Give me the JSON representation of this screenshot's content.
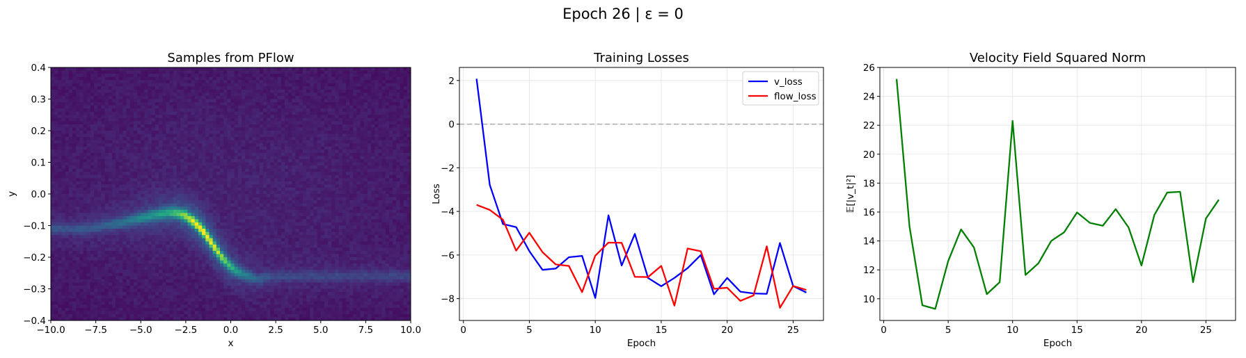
{
  "suptitle": "Epoch 26 | ε = 0",
  "chart_data": [
    {
      "type": "heatmap",
      "title": "Samples from PFlow",
      "xlabel": "x",
      "ylabel": "y",
      "xlim": [
        -10.0,
        10.0
      ],
      "ylim": [
        -0.4,
        0.4
      ],
      "xticks": [
        "−10.0",
        "−7.5",
        "−5.0",
        "−2.5",
        "0.0",
        "2.5",
        "5.0",
        "7.5",
        "10.0"
      ],
      "xtick_values": [
        -10.0,
        -7.5,
        -5.0,
        -2.5,
        0.0,
        2.5,
        5.0,
        7.5,
        10.0
      ],
      "yticks": [
        "−0.4",
        "−0.3",
        "−0.2",
        "−0.1",
        "0.0",
        "0.1",
        "0.2",
        "0.3",
        "0.4"
      ],
      "ytick_values": [
        -0.4,
        -0.3,
        -0.2,
        -0.1,
        0.0,
        0.1,
        0.2,
        0.3,
        0.4
      ],
      "colormap": "viridis",
      "grid": false,
      "density_ridge": {
        "x": [
          -8.0,
          -6.0,
          -4.5,
          -3.5,
          -3.0,
          -2.5,
          -2.0,
          -1.5,
          -1.0,
          -0.5,
          0.0,
          0.5,
          1.0,
          1.5,
          2.5
        ],
        "y": [
          -0.11,
          -0.09,
          -0.07,
          -0.06,
          -0.06,
          -0.07,
          -0.09,
          -0.12,
          -0.16,
          -0.2,
          -0.23,
          -0.25,
          -0.26,
          -0.27,
          -0.26
        ],
        "intensity": [
          0.2,
          0.3,
          0.45,
          0.55,
          0.65,
          0.8,
          0.95,
          1.0,
          0.95,
          0.8,
          0.6,
          0.45,
          0.35,
          0.25,
          0.15
        ]
      }
    },
    {
      "type": "line",
      "title": "Training Losses",
      "xlabel": "Epoch",
      "ylabel": "Loss",
      "xlim": [
        -0.3,
        27.3
      ],
      "ylim": [
        -9.0,
        2.6
      ],
      "xticks": [
        "0",
        "5",
        "10",
        "15",
        "20",
        "25"
      ],
      "xtick_values": [
        0,
        5,
        10,
        15,
        20,
        25
      ],
      "yticks": [
        "−8",
        "−6",
        "−4",
        "−2",
        "0",
        "2"
      ],
      "ytick_values": [
        -8,
        -6,
        -4,
        -2,
        0,
        2
      ],
      "grid": true,
      "hline": 0,
      "legend": "top-right",
      "x": [
        1,
        2,
        3,
        4,
        5,
        6,
        7,
        8,
        9,
        10,
        11,
        12,
        13,
        14,
        15,
        16,
        17,
        18,
        19,
        20,
        21,
        22,
        23,
        24,
        25,
        26
      ],
      "series": [
        {
          "name": "v_loss",
          "color": "#0000ff",
          "values": [
            2.08,
            -2.78,
            -4.58,
            -4.72,
            -5.82,
            -6.68,
            -6.62,
            -6.1,
            -6.04,
            -7.97,
            -4.18,
            -6.48,
            -5.03,
            -7.05,
            -7.43,
            -7.05,
            -6.6,
            -6.0,
            -7.8,
            -7.05,
            -7.68,
            -7.76,
            -7.78,
            -5.45,
            -7.42,
            -7.72
          ]
        },
        {
          "name": "flow_loss",
          "color": "#ff0000",
          "values": [
            -3.7,
            -3.93,
            -4.38,
            -5.8,
            -4.98,
            -5.87,
            -6.43,
            -6.5,
            -7.7,
            -6.03,
            -5.43,
            -5.44,
            -7.0,
            -7.01,
            -6.5,
            -8.32,
            -5.7,
            -5.83,
            -7.55,
            -7.5,
            -8.1,
            -7.85,
            -5.6,
            -8.42,
            -7.42,
            -7.6
          ]
        }
      ]
    },
    {
      "type": "line",
      "title": "Velocity Field Squared Norm",
      "xlabel": "Epoch",
      "ylabel": "𝔼[|v_t|²]",
      "xlim": [
        -0.3,
        27.3
      ],
      "ylim": [
        8.5,
        26.0
      ],
      "xticks": [
        "0",
        "5",
        "10",
        "15",
        "20",
        "25"
      ],
      "xtick_values": [
        0,
        5,
        10,
        15,
        20,
        25
      ],
      "yticks": [
        "10",
        "12",
        "14",
        "16",
        "18",
        "20",
        "22",
        "24",
        "26"
      ],
      "ytick_values": [
        10,
        12,
        14,
        16,
        18,
        20,
        22,
        24,
        26
      ],
      "grid": true,
      "x": [
        1,
        2,
        3,
        4,
        5,
        6,
        7,
        8,
        9,
        10,
        11,
        12,
        13,
        14,
        15,
        16,
        17,
        18,
        19,
        20,
        21,
        22,
        23,
        24,
        25,
        26
      ],
      "series": [
        {
          "color": "#008000",
          "values": [
            25.2,
            15.0,
            9.55,
            9.3,
            12.6,
            14.8,
            13.55,
            10.32,
            11.15,
            22.3,
            11.65,
            12.45,
            14.0,
            14.6,
            15.97,
            15.25,
            15.05,
            16.2,
            14.93,
            12.3,
            15.8,
            17.35,
            17.4,
            11.15,
            15.55,
            16.85
          ]
        }
      ]
    }
  ]
}
